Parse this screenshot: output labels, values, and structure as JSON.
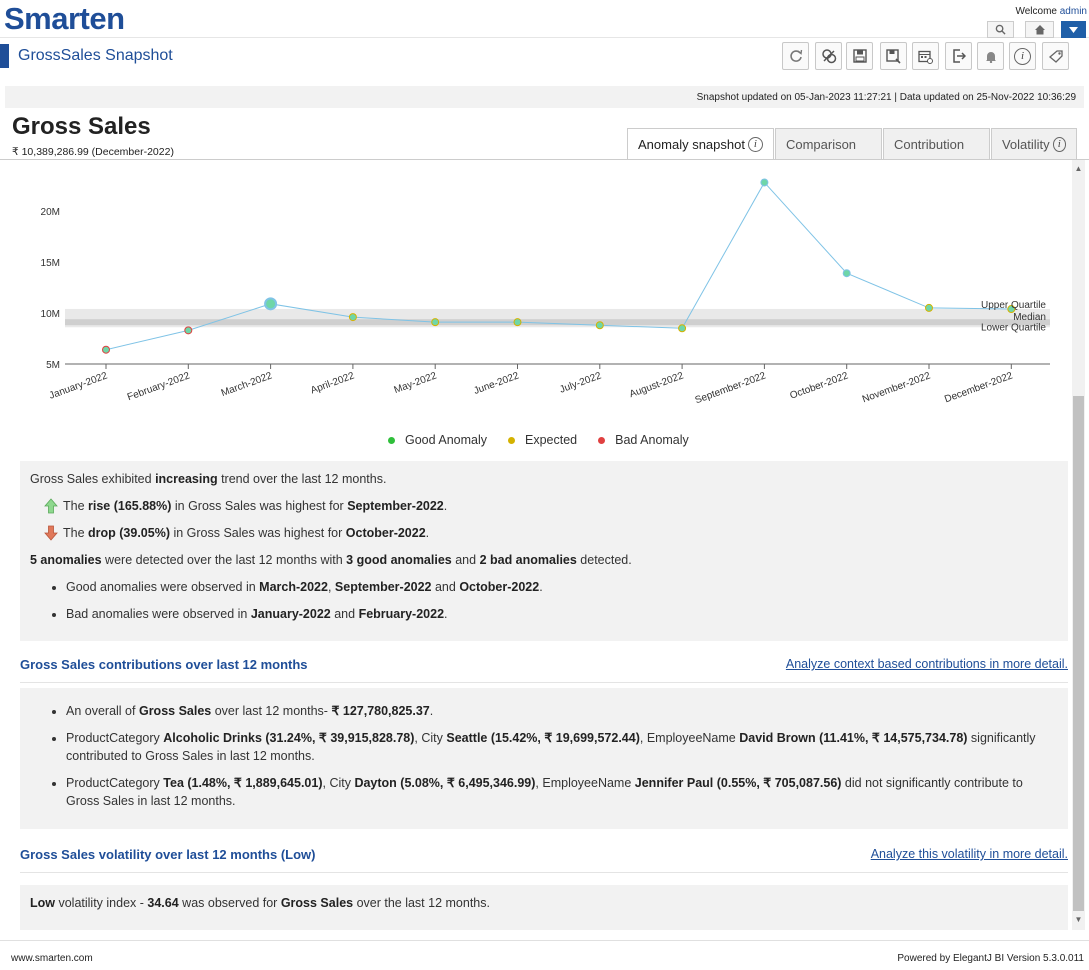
{
  "header": {
    "logo": "Smarten",
    "welcome_prefix": "Welcome",
    "user": "admin",
    "page_title": "GrossSales Snapshot"
  },
  "update_info": "Snapshot updated on 05-Jan-2023 11:27:21   |   Data updated on 25-Nov-2022 10:36:29",
  "kpi": {
    "title": "Gross Sales",
    "subtitle": "₹ 10,389,286.99 (December-2022)"
  },
  "tabs": [
    {
      "label": "Anomaly snapshot",
      "info": true,
      "active": true
    },
    {
      "label": "Comparison",
      "info": false
    },
    {
      "label": "Contribution",
      "info": false
    },
    {
      "label": "Volatility",
      "info": true
    }
  ],
  "colors": {
    "brand": "#1f4e98",
    "good": "#2fbf3b",
    "expected": "#d4b200",
    "bad": "#e04040",
    "line": "#7fc3e6",
    "point": "#6fd6a8"
  },
  "chart_data": {
    "type": "line",
    "categories": [
      "January-2022",
      "February-2022",
      "March-2022",
      "April-2022",
      "May-2022",
      "June-2022",
      "July-2022",
      "August-2022",
      "September-2022",
      "October-2022",
      "November-2022",
      "December-2022"
    ],
    "series": [
      {
        "values": [
          6.4,
          8.3,
          10.9,
          9.6,
          9.1,
          9.1,
          8.8,
          8.5,
          22.8,
          13.9,
          10.5,
          10.39
        ]
      }
    ],
    "point_status": [
      "bad",
      "bad",
      "good",
      "expected",
      "expected",
      "expected",
      "expected",
      "expected",
      "good",
      "good",
      "expected",
      "expected"
    ],
    "yticks": [
      "5M",
      "10M",
      "15M",
      "20M"
    ],
    "ytick_values": [
      5,
      10,
      15,
      20
    ],
    "ylim": [
      5,
      25
    ],
    "band": {
      "lower": 8.6,
      "upper": 10.4,
      "median": 9.1
    },
    "band_labels": {
      "upper": "Upper Quartile",
      "median": "Median",
      "lower": "Lower Quartile"
    },
    "legend": [
      "Good Anomaly",
      "Expected",
      "Bad Anomaly"
    ]
  },
  "summary": {
    "trend_a": "Gross Sales exhibited ",
    "trend_b": "increasing",
    "trend_c": " trend over the last 12 months.",
    "rise_a": "The ",
    "rise_b": "rise (165.88%)",
    "rise_c": " in Gross Sales was highest for ",
    "rise_d": "September-2022",
    "rise_e": ".",
    "drop_a": "The ",
    "drop_b": "drop (39.05%)",
    "drop_c": " in Gross Sales was highest for ",
    "drop_d": "October-2022",
    "drop_e": ".",
    "anom_a": "5 anomalies",
    "anom_b": " were detected over the last 12 months with ",
    "anom_c": "3 good anomalies",
    "anom_d": " and ",
    "anom_e": "2 bad anomalies",
    "anom_f": " detected.",
    "good_a": "Good anomalies were observed in ",
    "good_b": "March-2022",
    "good_c": ", ",
    "good_d": "September-2022",
    "good_e": " and ",
    "good_f": "October-2022",
    "good_g": ".",
    "bad_a": "Bad anomalies were observed in ",
    "bad_b": "January-2022",
    "bad_c": " and ",
    "bad_d": "February-2022",
    "bad_e": "."
  },
  "contrib": {
    "heading": "Gross Sales contributions over last 12 months",
    "link": "Analyze context based contributions in more detail.",
    "o_a": "An overall of ",
    "o_b": "Gross Sales",
    "o_c": " over last 12 months- ",
    "o_d": "₹ 127,780,825.37",
    "o_e": ".",
    "s_a": "ProductCategory ",
    "s_b": "Alcoholic Drinks (31.24%, ₹ 39,915,828.78)",
    "s_c": ", City ",
    "s_d": "Seattle (15.42%, ₹ 19,699,572.44)",
    "s_e": ", EmployeeName ",
    "s_f": "David Brown (11.41%, ₹ 14,575,734.78)",
    "s_g": " significantly contributed to Gross Sales in last 12 months.",
    "n_a": "ProductCategory ",
    "n_b": "Tea (1.48%, ₹ 1,889,645.01)",
    "n_c": ", City ",
    "n_d": "Dayton (5.08%, ₹ 6,495,346.99)",
    "n_e": ", EmployeeName ",
    "n_f": "Jennifer Paul (0.55%, ₹ 705,087.56)",
    "n_g": " did not significantly contribute to Gross Sales in last 12 months."
  },
  "volatility": {
    "heading": "Gross Sales volatility over last 12 months (Low)",
    "link": "Analyze this volatility in more detail.",
    "v_a": "Low",
    "v_b": " volatility index - ",
    "v_c": "34.64",
    "v_d": " was observed for ",
    "v_e": "Gross Sales",
    "v_f": " over the last 12 months."
  },
  "footer": {
    "left": "www.smarten.com",
    "right": "Powered by ElegantJ BI Version 5.3.0.011"
  }
}
